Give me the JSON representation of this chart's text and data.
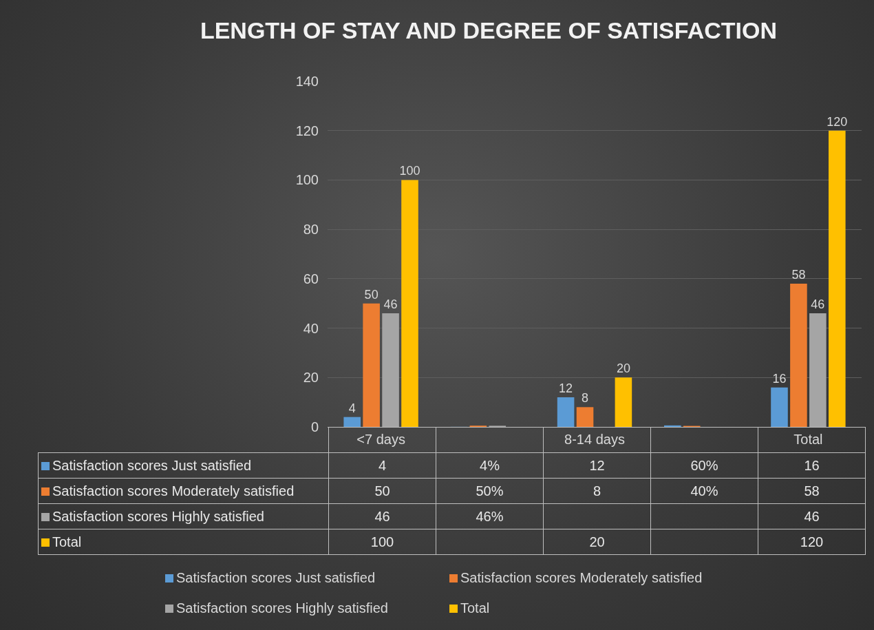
{
  "chart_data": {
    "type": "bar",
    "title": "LENGTH OF STAY AND DEGREE OF SATISFACTION",
    "categories": [
      "<7 days",
      null,
      "8-14 days",
      null,
      "Total"
    ],
    "series": [
      {
        "name": "Satisfaction scores Just satisfied",
        "color": "#5b9bd5",
        "values": [
          4,
          0.04,
          12,
          0.6,
          16
        ],
        "value_labels": [
          "4",
          "4%",
          "12",
          "60%",
          "16"
        ]
      },
      {
        "name": "Satisfaction scores Moderately satisfied",
        "color": "#ed7d31",
        "values": [
          50,
          0.5,
          8,
          0.4,
          58
        ],
        "value_labels": [
          "50",
          "50%",
          "8",
          "40%",
          "58"
        ]
      },
      {
        "name": "Satisfaction scores Highly satisfied",
        "color": "#a5a5a5",
        "values": [
          46,
          0.46,
          null,
          null,
          46
        ],
        "value_labels": [
          "46",
          "46%",
          null,
          null,
          "46"
        ]
      },
      {
        "name": "Total",
        "color": "#ffc000",
        "values": [
          100,
          null,
          20,
          null,
          120
        ],
        "value_labels": [
          "100",
          null,
          "20",
          null,
          "120"
        ]
      }
    ],
    "ylim": [
      0,
      140
    ],
    "yticks": [
      0,
      20,
      40,
      60,
      80,
      100,
      120,
      140
    ],
    "grid": "y",
    "legend": "bottom"
  }
}
